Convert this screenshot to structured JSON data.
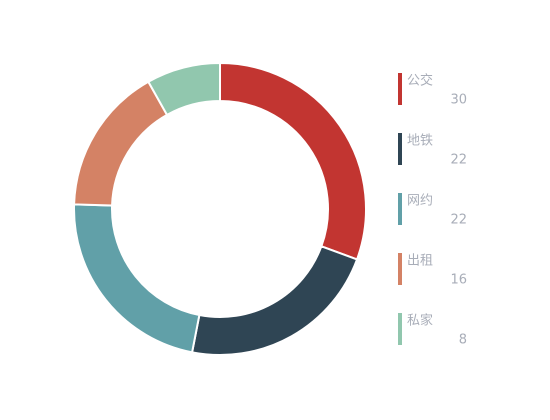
{
  "chart_data": {
    "type": "pie",
    "categories": [
      "公交",
      "地铁",
      "网约",
      "出租",
      "私家"
    ],
    "values": [
      30,
      22,
      22,
      16,
      8
    ],
    "colors": [
      "#c23531",
      "#2f4554",
      "#61a0a8",
      "#d48265",
      "#91c7ae"
    ],
    "donut": true,
    "legend": "right"
  }
}
